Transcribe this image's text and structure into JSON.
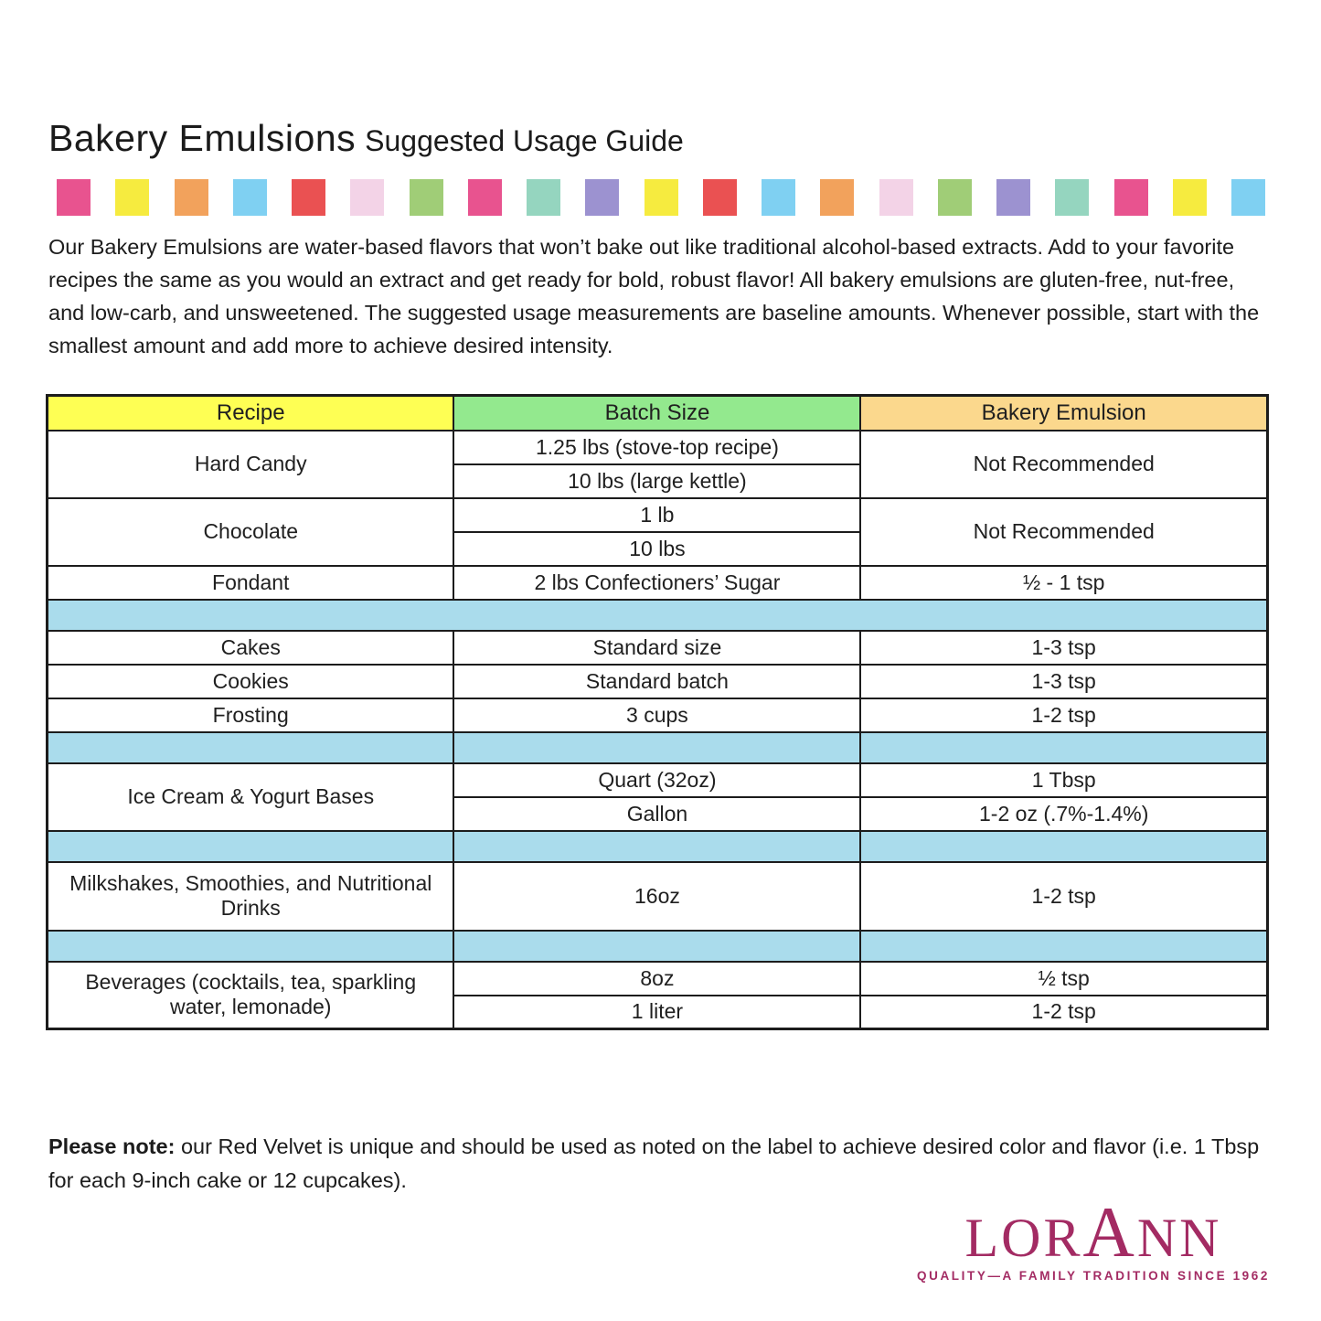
{
  "page": {
    "title_main": "Bakery Emulsions",
    "title_sub": "Suggested Usage Guide",
    "intro": "Our Bakery Emulsions are water-based flavors that won’t bake out like traditional alcohol-based extracts. Add to your favorite recipes the same as you would an extract and get ready for bold, robust flavor! All bakery emulsions are gluten-free, nut-free, and low-carb, and unsweetened. The suggested usage measurements are baseline amounts. Whenever possible, start with the smallest amount and add more to achieve desired intensity."
  },
  "color_strip": {
    "square_colors": [
      "#e8538f",
      "#f6eb3f",
      "#f2a25c",
      "#7fd0f2",
      "#ea5152",
      "#f3d3e7",
      "#a0cd77",
      "#e8538f",
      "#95d5bf",
      "#9c92d0",
      "#f6eb3f",
      "#ea5152",
      "#7fd0f2",
      "#f2a25c",
      "#f3d3e7",
      "#a0cd77",
      "#9c92d0",
      "#95d5bf",
      "#e8538f",
      "#f6eb3f",
      "#7fd0f2"
    ]
  },
  "table": {
    "headers": {
      "recipe": "Recipe",
      "batch": "Batch Size",
      "emulsion": "Bakery Emulsion"
    },
    "header_colors": {
      "recipe": "#feff54",
      "batch": "#93e98e",
      "emulsion": "#fbd88d"
    },
    "separator_color": "#aadcec",
    "rows": {
      "hard_candy": {
        "recipe": "Hard Candy",
        "batch1": "1.25 lbs (stove-top recipe)",
        "batch2": "10 lbs (large kettle)",
        "emulsion": "Not Recommended"
      },
      "chocolate": {
        "recipe": "Chocolate",
        "batch1": "1 lb",
        "batch2": "10 lbs",
        "emulsion": "Not Recommended"
      },
      "fondant": {
        "recipe": "Fondant",
        "batch": "2 lbs Confectioners’ Sugar",
        "emulsion": "½ - 1 tsp"
      },
      "cakes": {
        "recipe": "Cakes",
        "batch": "Standard size",
        "emulsion": "1-3 tsp"
      },
      "cookies": {
        "recipe": "Cookies",
        "batch": "Standard batch",
        "emulsion": "1-3 tsp"
      },
      "frosting": {
        "recipe": "Frosting",
        "batch": "3 cups",
        "emulsion": "1-2 tsp"
      },
      "ice_cream": {
        "recipe": "Ice Cream & Yogurt Bases",
        "batch1": "Quart (32oz)",
        "emulsion1": "1 Tbsp",
        "batch2": "Gallon",
        "emulsion2": "1-2 oz (.7%-1.4%)"
      },
      "milkshakes": {
        "recipe": "Milkshakes, Smoothies, and Nutritional Drinks",
        "batch": "16oz",
        "emulsion": "1-2 tsp"
      },
      "beverages": {
        "recipe": "Beverages (cocktails, tea, sparkling water, lemonade)",
        "batch1": "8oz",
        "emulsion1": "½ tsp",
        "batch2": "1 liter",
        "emulsion2": "1-2 tsp"
      }
    }
  },
  "note": {
    "bold": "Please note:",
    "rest": " our Red Velvet is unique and should be used as noted on the label to achieve desired color and flavor (i.e. 1 Tbsp for each 9-inch cake or 12 cupcakes)."
  },
  "logo": {
    "word_part1": "LOR",
    "word_part2": "A",
    "word_part3": "NN",
    "tagline": "QUALITY—A FAMILY TRADITION SINCE 1962",
    "color": "#a32b63"
  }
}
